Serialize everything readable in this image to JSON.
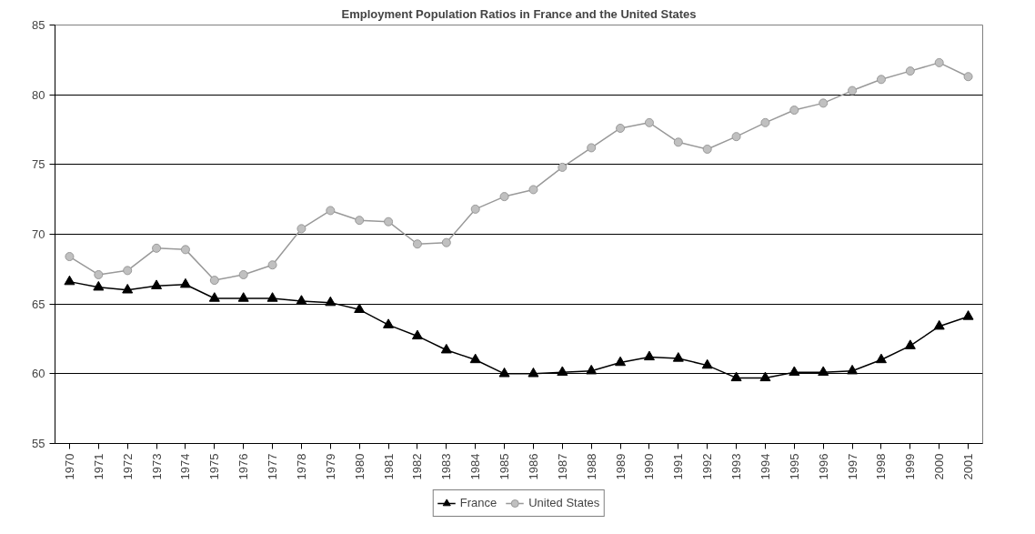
{
  "chart_data": {
    "type": "line",
    "title": "Employment Population Ratios in France and the United States",
    "categories": [
      "1970",
      "1971",
      "1972",
      "1973",
      "1974",
      "1975",
      "1976",
      "1977",
      "1978",
      "1979",
      "1980",
      "1981",
      "1982",
      "1983",
      "1984",
      "1985",
      "1986",
      "1987",
      "1988",
      "1989",
      "1990",
      "1991",
      "1992",
      "1993",
      "1994",
      "1995",
      "1996",
      "1997",
      "1998",
      "1999",
      "2000",
      "2001"
    ],
    "series": [
      {
        "name": "France",
        "color": "#000000",
        "marker": "triangle",
        "values": [
          66.6,
          66.2,
          66.0,
          66.3,
          66.4,
          65.4,
          65.4,
          65.4,
          65.2,
          65.1,
          64.6,
          63.5,
          62.7,
          61.7,
          61.0,
          60.0,
          60.0,
          60.1,
          60.2,
          60.8,
          61.2,
          61.1,
          60.6,
          59.7,
          59.7,
          60.1,
          60.1,
          60.2,
          61.0,
          62.0,
          63.4,
          64.1
        ]
      },
      {
        "name": "United States",
        "color": "#999999",
        "marker": "circle",
        "values": [
          68.4,
          67.1,
          67.4,
          69.0,
          68.9,
          66.7,
          67.1,
          67.8,
          70.4,
          71.7,
          71.0,
          70.9,
          69.3,
          69.4,
          71.8,
          72.7,
          73.2,
          74.8,
          76.2,
          77.6,
          78.0,
          76.6,
          76.1,
          77.0,
          78.0,
          78.9,
          79.4,
          80.3,
          81.1,
          81.7,
          82.3,
          81.3
        ]
      }
    ],
    "ylim": [
      55,
      85
    ],
    "yticks": [
      55,
      60,
      65,
      70,
      75,
      80,
      85
    ],
    "grid": "y",
    "legend": "bottom",
    "line_style": "solid"
  }
}
